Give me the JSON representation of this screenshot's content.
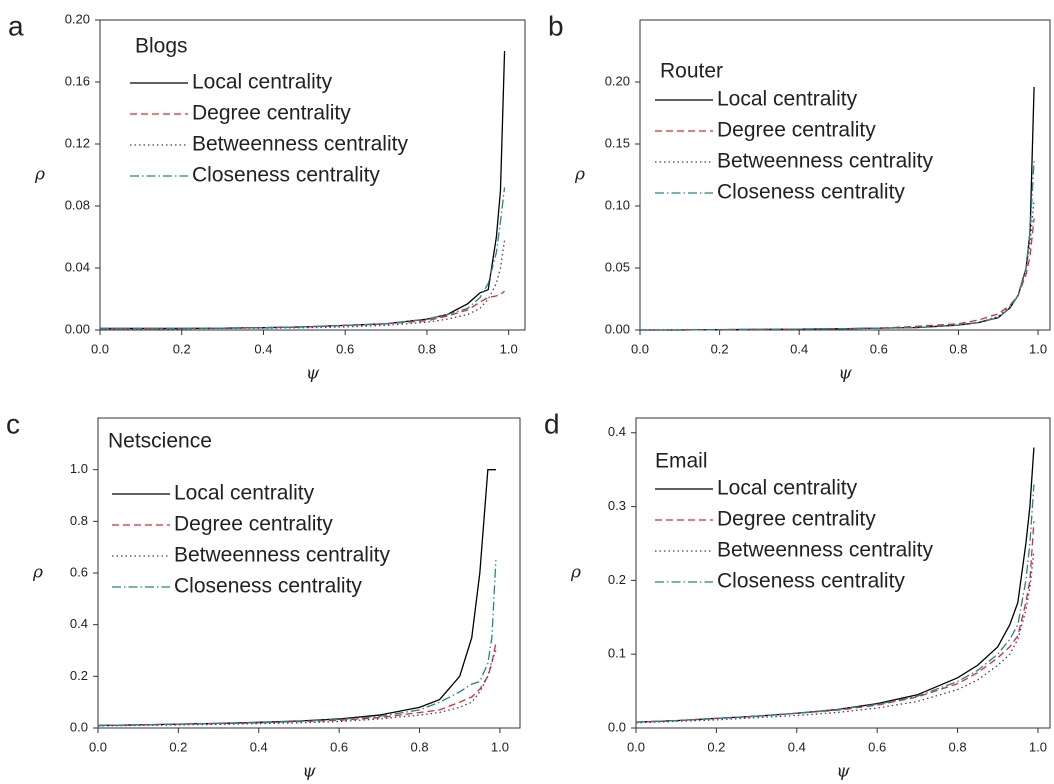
{
  "chart_data": [
    {
      "type": "line",
      "panel_label": "a",
      "title": "Blogs",
      "x_label": "ψ",
      "y_label": "ρ",
      "xlim": [
        0,
        1.04
      ],
      "ylim": [
        0,
        0.2
      ],
      "xticks": [
        {
          "value": 0,
          "label": "0.0"
        },
        {
          "value": 0.2,
          "label": "0.2"
        },
        {
          "value": 0.4,
          "label": "0.4"
        },
        {
          "value": 0.6,
          "label": "0.6"
        },
        {
          "value": 0.8,
          "label": "0.8"
        },
        {
          "value": 1,
          "label": "1.0"
        }
      ],
      "yticks": [
        {
          "value": 0,
          "label": "0.00"
        },
        {
          "value": 0.04,
          "label": "0.04"
        },
        {
          "value": 0.08,
          "label": "0.08"
        },
        {
          "value": 0.12,
          "label": "0.12"
        },
        {
          "value": 0.16,
          "label": "0.16"
        },
        {
          "value": 0.2,
          "label": "0.20"
        }
      ],
      "x": [
        0,
        0.1,
        0.2,
        0.3,
        0.4,
        0.5,
        0.6,
        0.7,
        0.8,
        0.85,
        0.9,
        0.93,
        0.95,
        0.97,
        0.98,
        0.99
      ],
      "series": [
        {
          "name": "Local centrality",
          "color": "#000000",
          "linestyle": "solid",
          "values": [
            0.001,
            0.001,
            0.001,
            0.0012,
            0.0015,
            0.002,
            0.003,
            0.004,
            0.007,
            0.01,
            0.017,
            0.024,
            0.026,
            0.06,
            0.09,
            0.18
          ]
        },
        {
          "name": "Degree centrality",
          "color": "#e8262a",
          "linestyle": "dashed",
          "values": [
            0.001,
            0.001,
            0.001,
            0.0012,
            0.0015,
            0.002,
            0.003,
            0.004,
            0.006,
            0.009,
            0.013,
            0.018,
            0.021,
            0.022,
            0.023,
            0.025
          ]
        },
        {
          "name": "Betweenness centrality",
          "color": "#3a3a8c",
          "linestyle": "dotted",
          "values": [
            0.0005,
            0.0006,
            0.0008,
            0.001,
            0.0012,
            0.0015,
            0.002,
            0.003,
            0.005,
            0.007,
            0.01,
            0.014,
            0.02,
            0.03,
            0.04,
            0.058
          ]
        },
        {
          "name": "Closeness centrality",
          "color": "#1a8a8a",
          "linestyle": "dashdot",
          "values": [
            0.001,
            0.001,
            0.001,
            0.0012,
            0.0015,
            0.002,
            0.003,
            0.004,
            0.007,
            0.01,
            0.014,
            0.021,
            0.03,
            0.05,
            0.07,
            0.092
          ]
        }
      ]
    },
    {
      "type": "line",
      "panel_label": "b",
      "title": "Router",
      "x_label": "ψ",
      "y_label": "ρ",
      "xlim": [
        0,
        1.03
      ],
      "ylim": [
        0,
        0.25
      ],
      "xticks": [
        {
          "value": 0,
          "label": "0.0"
        },
        {
          "value": 0.2,
          "label": "0.2"
        },
        {
          "value": 0.4,
          "label": "0.4"
        },
        {
          "value": 0.6,
          "label": "0.6"
        },
        {
          "value": 0.8,
          "label": "0.8"
        },
        {
          "value": 1,
          "label": "1.0"
        }
      ],
      "yticks": [
        {
          "value": 0,
          "label": "0.00"
        },
        {
          "value": 0.05,
          "label": "0.05"
        },
        {
          "value": 0.1,
          "label": "0.10"
        },
        {
          "value": 0.15,
          "label": "0.15"
        },
        {
          "value": 0.2,
          "label": "0.20"
        }
      ],
      "x": [
        0,
        0.1,
        0.2,
        0.3,
        0.4,
        0.5,
        0.6,
        0.7,
        0.8,
        0.85,
        0.9,
        0.93,
        0.95,
        0.97,
        0.98,
        0.99
      ],
      "series": [
        {
          "name": "Local centrality",
          "color": "#000000",
          "linestyle": "solid",
          "values": [
            0,
            0,
            0.0003,
            0.0005,
            0.0007,
            0.001,
            0.0015,
            0.002,
            0.004,
            0.006,
            0.01,
            0.018,
            0.028,
            0.05,
            0.08,
            0.196
          ]
        },
        {
          "name": "Degree centrality",
          "color": "#e8262a",
          "linestyle": "dashed",
          "values": [
            0,
            0,
            0.0003,
            0.0005,
            0.0007,
            0.001,
            0.0015,
            0.003,
            0.005,
            0.008,
            0.013,
            0.02,
            0.028,
            0.045,
            0.06,
            0.09
          ]
        },
        {
          "name": "Betweenness centrality",
          "color": "#3a3a8c",
          "linestyle": "dotted",
          "values": [
            0,
            0,
            0.0002,
            0.0004,
            0.0006,
            0.001,
            0.0014,
            0.002,
            0.004,
            0.006,
            0.011,
            0.019,
            0.028,
            0.05,
            0.07,
            0.105
          ]
        },
        {
          "name": "Closeness centrality",
          "color": "#1a8a8a",
          "linestyle": "dashdot",
          "values": [
            0,
            0,
            0.0003,
            0.0005,
            0.0007,
            0.001,
            0.0015,
            0.002,
            0.004,
            0.006,
            0.01,
            0.018,
            0.028,
            0.05,
            0.08,
            0.137
          ]
        }
      ]
    },
    {
      "type": "line",
      "panel_label": "c",
      "title": "Netscience",
      "x_label": "ψ",
      "y_label": "ρ",
      "xlim": [
        0,
        1.05
      ],
      "ylim": [
        0,
        1.2
      ],
      "xticks": [
        {
          "value": 0,
          "label": "0.0"
        },
        {
          "value": 0.2,
          "label": "0.2"
        },
        {
          "value": 0.4,
          "label": "0.4"
        },
        {
          "value": 0.6,
          "label": "0.6"
        },
        {
          "value": 0.8,
          "label": "0.8"
        },
        {
          "value": 1,
          "label": "1.0"
        }
      ],
      "yticks": [
        {
          "value": 0,
          "label": "0.0"
        },
        {
          "value": 0.2,
          "label": "0.2"
        },
        {
          "value": 0.4,
          "label": "0.4"
        },
        {
          "value": 0.6,
          "label": "0.6"
        },
        {
          "value": 0.8,
          "label": "0.8"
        },
        {
          "value": 1,
          "label": "1.0"
        }
      ],
      "x": [
        0,
        0.1,
        0.2,
        0.3,
        0.4,
        0.5,
        0.6,
        0.7,
        0.8,
        0.85,
        0.9,
        0.93,
        0.95,
        0.97,
        0.98,
        0.99
      ],
      "series": [
        {
          "name": "Local centrality",
          "color": "#000000",
          "linestyle": "solid",
          "values": [
            0.01,
            0.012,
            0.015,
            0.018,
            0.022,
            0.027,
            0.035,
            0.05,
            0.08,
            0.11,
            0.2,
            0.35,
            0.6,
            1.0,
            1.0,
            1.0
          ]
        },
        {
          "name": "Degree centrality",
          "color": "#e8262a",
          "linestyle": "dashed",
          "values": [
            0.01,
            0.012,
            0.015,
            0.017,
            0.02,
            0.025,
            0.03,
            0.04,
            0.06,
            0.07,
            0.1,
            0.12,
            0.15,
            0.2,
            0.25,
            0.33
          ]
        },
        {
          "name": "Betweenness centrality",
          "color": "#3a3a8c",
          "linestyle": "dotted",
          "values": [
            0.008,
            0.01,
            0.012,
            0.014,
            0.017,
            0.02,
            0.025,
            0.035,
            0.05,
            0.06,
            0.08,
            0.1,
            0.14,
            0.2,
            0.26,
            0.3
          ]
        },
        {
          "name": "Closeness centrality",
          "color": "#1a8a8a",
          "linestyle": "dashdot",
          "values": [
            0.01,
            0.012,
            0.015,
            0.018,
            0.021,
            0.026,
            0.033,
            0.045,
            0.07,
            0.1,
            0.14,
            0.17,
            0.18,
            0.25,
            0.35,
            0.65
          ]
        }
      ]
    },
    {
      "type": "line",
      "panel_label": "d",
      "title": "Email",
      "x_label": "ψ",
      "y_label": "ρ",
      "xlim": [
        0,
        1.03
      ],
      "ylim": [
        0,
        0.42
      ],
      "xticks": [
        {
          "value": 0,
          "label": "0.0"
        },
        {
          "value": 0.2,
          "label": "0.2"
        },
        {
          "value": 0.4,
          "label": "0.4"
        },
        {
          "value": 0.6,
          "label": "0.6"
        },
        {
          "value": 0.8,
          "label": "0.8"
        },
        {
          "value": 1,
          "label": "1.0"
        }
      ],
      "yticks": [
        {
          "value": 0,
          "label": "0.0"
        },
        {
          "value": 0.1,
          "label": "0.1"
        },
        {
          "value": 0.2,
          "label": "0.2"
        },
        {
          "value": 0.3,
          "label": "0.3"
        },
        {
          "value": 0.4,
          "label": "0.4"
        }
      ],
      "x": [
        0,
        0.1,
        0.2,
        0.3,
        0.4,
        0.5,
        0.6,
        0.7,
        0.8,
        0.85,
        0.9,
        0.93,
        0.95,
        0.97,
        0.98,
        0.99
      ],
      "series": [
        {
          "name": "Local centrality",
          "color": "#000000",
          "linestyle": "solid",
          "values": [
            0.008,
            0.01,
            0.013,
            0.016,
            0.02,
            0.025,
            0.033,
            0.045,
            0.068,
            0.085,
            0.11,
            0.14,
            0.17,
            0.25,
            0.3,
            0.38
          ]
        },
        {
          "name": "Degree centrality",
          "color": "#e8262a",
          "linestyle": "dashed",
          "values": [
            0.008,
            0.01,
            0.013,
            0.016,
            0.02,
            0.024,
            0.031,
            0.042,
            0.06,
            0.075,
            0.095,
            0.11,
            0.125,
            0.17,
            0.2,
            0.28
          ]
        },
        {
          "name": "Betweenness centrality",
          "color": "#3a3a8c",
          "linestyle": "dotted",
          "values": [
            0.007,
            0.009,
            0.011,
            0.014,
            0.017,
            0.021,
            0.027,
            0.036,
            0.052,
            0.065,
            0.085,
            0.1,
            0.12,
            0.16,
            0.19,
            0.24
          ]
        },
        {
          "name": "Closeness centrality",
          "color": "#1a8a8a",
          "linestyle": "dashdot",
          "values": [
            0.008,
            0.01,
            0.013,
            0.016,
            0.02,
            0.025,
            0.032,
            0.043,
            0.063,
            0.078,
            0.1,
            0.12,
            0.14,
            0.2,
            0.25,
            0.33
          ]
        }
      ]
    }
  ]
}
